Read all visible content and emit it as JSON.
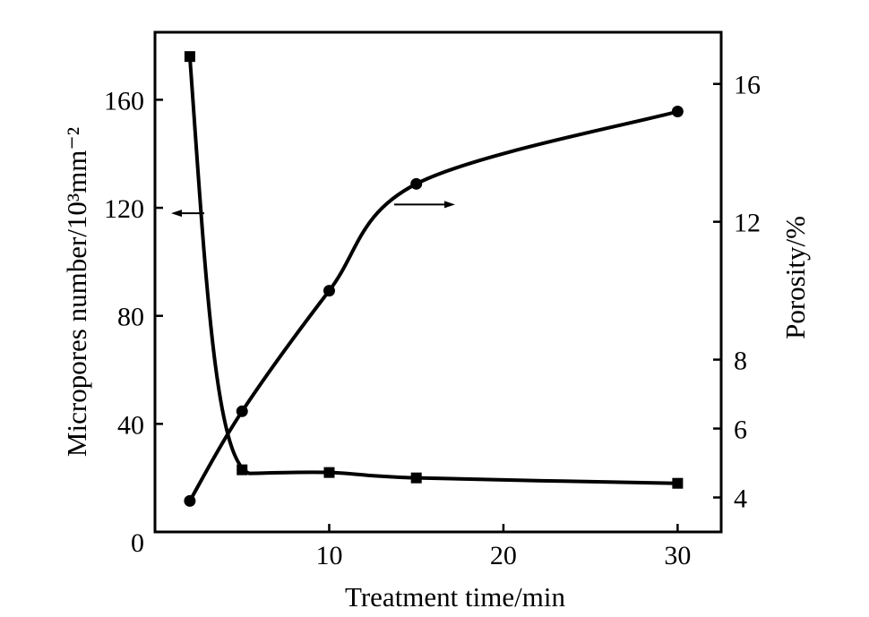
{
  "chart_data": {
    "type": "line",
    "xlabel": "Treatment time/min",
    "ylabel_left": "Micropores number/10³mm⁻²",
    "ylabel_right": "Porosity/%",
    "xlim": [
      0,
      32.5
    ],
    "ylim_left": [
      0,
      185
    ],
    "ylim_right": [
      3,
      17.5
    ],
    "x_ticks": [
      10,
      20,
      30
    ],
    "x_tick_labels": [
      "10",
      "20",
      "30"
    ],
    "y_left_ticks": [
      0,
      40,
      80,
      120,
      160
    ],
    "y_left_tick_labels": [
      "0",
      "40",
      "80",
      "120",
      "160"
    ],
    "y_right_ticks": [
      4,
      6,
      8,
      12,
      16
    ],
    "y_right_tick_labels": [
      "4",
      "6",
      "8",
      "12",
      "16"
    ],
    "grid": false,
    "legend": "none",
    "series": [
      {
        "axis": "left",
        "marker": "square",
        "x": [
          2,
          5,
          10,
          15,
          30
        ],
        "y": [
          176,
          23,
          22,
          20,
          18
        ]
      },
      {
        "axis": "right",
        "marker": "circle",
        "x": [
          2,
          5,
          10,
          15,
          30
        ],
        "y": [
          3.9,
          6.5,
          10.0,
          13.1,
          15.2
        ]
      }
    ],
    "annotations": [
      {
        "kind": "arrow",
        "points_to": "left",
        "series": 0
      },
      {
        "kind": "arrow",
        "points_to": "right",
        "series": 1
      }
    ]
  }
}
